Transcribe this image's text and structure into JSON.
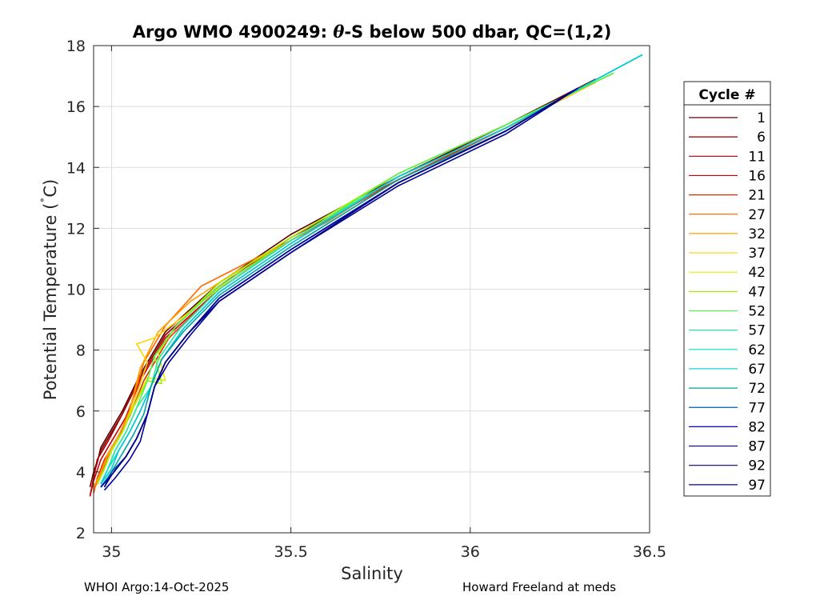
{
  "chart_data": {
    "type": "line",
    "title_parts": [
      "Argo WMO 4900249: ",
      "θ",
      "-S below 500 dbar,  QC=(1,2)"
    ],
    "xlabel": "Salinity",
    "ylabel_parts": [
      "Potential Temperature (",
      "˚",
      "C)"
    ],
    "xlim": [
      34.95,
      36.5
    ],
    "ylim": [
      2,
      18
    ],
    "xticks": [
      35,
      35.5,
      36,
      36.5
    ],
    "xtick_labels": [
      "35",
      "35.5",
      "36",
      "36.5"
    ],
    "yticks": [
      2,
      4,
      6,
      8,
      10,
      12,
      14,
      16,
      18
    ],
    "ytick_labels": [
      "2",
      "4",
      "6",
      "8",
      "10",
      "12",
      "14",
      "16",
      "18"
    ],
    "grid": true,
    "legend_placement": "outside-right",
    "legend_title": "Cycle #",
    "series": [
      {
        "name": "1",
        "color": "#5a0000",
        "x": [
          34.95,
          34.96,
          34.97,
          34.99,
          35.03,
          35.08,
          35.15,
          35.3,
          35.5,
          35.8,
          36.1,
          36.35
        ],
        "y": [
          3.9,
          4.3,
          4.8,
          5.2,
          6.0,
          7.2,
          8.6,
          10.2,
          11.8,
          13.7,
          15.4,
          16.9
        ]
      },
      {
        "name": "6",
        "color": "#7a0000",
        "x": [
          34.94,
          34.95,
          34.97,
          34.99,
          35.03,
          35.08,
          35.15,
          35.3,
          35.5,
          35.8,
          36.1,
          36.35
        ],
        "y": [
          3.5,
          4.0,
          4.7,
          5.1,
          5.9,
          7.1,
          8.5,
          10.1,
          11.7,
          13.6,
          15.3,
          16.8
        ]
      },
      {
        "name": "11",
        "color": "#a60000",
        "x": [
          34.94,
          34.95,
          34.96,
          34.99,
          35.03,
          35.08,
          35.15,
          35.3,
          35.5,
          35.8,
          36.1,
          36.35
        ],
        "y": [
          3.2,
          3.8,
          4.4,
          5.0,
          5.9,
          7.1,
          8.5,
          10.1,
          11.7,
          13.6,
          15.3,
          16.8
        ]
      },
      {
        "name": "16",
        "color": "#cc0000",
        "x": [
          34.94,
          34.95,
          34.97,
          35.0,
          35.04,
          35.08,
          35.15,
          35.3,
          35.5,
          35.8,
          36.1,
          36.35
        ],
        "y": [
          3.2,
          3.7,
          4.4,
          5.0,
          5.8,
          7.0,
          8.4,
          10.0,
          11.6,
          13.6,
          15.3,
          16.8
        ]
      },
      {
        "name": "21",
        "color": "#e62a00",
        "x": [
          34.95,
          34.96,
          34.98,
          35.01,
          35.05,
          35.09,
          35.16,
          35.3,
          35.5,
          35.8,
          36.1,
          36.35
        ],
        "y": [
          3.3,
          3.8,
          4.4,
          5.0,
          5.8,
          7.0,
          8.4,
          10.0,
          11.6,
          13.6,
          15.3,
          16.8
        ]
      },
      {
        "name": "27",
        "color": "#ff6a00",
        "x": [
          34.95,
          34.97,
          34.99,
          35.02,
          35.05,
          35.09,
          35.15,
          35.25,
          35.4,
          35.6,
          35.8,
          36.1,
          36.35
        ],
        "y": [
          3.4,
          3.9,
          4.5,
          5.1,
          6.0,
          7.6,
          8.8,
          10.1,
          11.0,
          12.2,
          13.7,
          15.3,
          16.8
        ]
      },
      {
        "name": "32",
        "color": "#ff9f00",
        "x": [
          34.95,
          34.97,
          34.99,
          35.02,
          35.05,
          35.08,
          35.13,
          35.22,
          35.35,
          35.5,
          35.8,
          36.1,
          36.35
        ],
        "y": [
          3.5,
          4.0,
          4.6,
          5.2,
          6.0,
          7.4,
          8.6,
          9.6,
          10.6,
          11.6,
          13.7,
          15.3,
          16.8
        ]
      },
      {
        "name": "37",
        "color": "#ffd400",
        "x": [
          34.96,
          34.98,
          35.0,
          35.03,
          35.06,
          35.1,
          35.07,
          35.12,
          35.2,
          35.35,
          35.5,
          35.8,
          36.1,
          36.35
        ],
        "y": [
          3.6,
          4.1,
          4.7,
          5.3,
          6.2,
          7.6,
          8.2,
          8.4,
          9.1,
          10.5,
          11.6,
          13.7,
          15.3,
          16.8
        ]
      },
      {
        "name": "42",
        "color": "#e0f000",
        "x": [
          34.96,
          34.98,
          35.0,
          35.03,
          35.06,
          35.1,
          35.15,
          35.13,
          35.18,
          35.3,
          35.5,
          35.8,
          36.1,
          36.4
        ],
        "y": [
          3.6,
          4.1,
          4.7,
          5.3,
          6.1,
          7.1,
          7.0,
          7.9,
          8.8,
          10.2,
          11.7,
          13.8,
          15.4,
          17.1
        ]
      },
      {
        "name": "47",
        "color": "#a2f000",
        "x": [
          34.96,
          34.98,
          35.0,
          35.03,
          35.06,
          35.1,
          35.14,
          35.12,
          35.18,
          35.3,
          35.5,
          35.8,
          36.1,
          36.4
        ],
        "y": [
          3.6,
          4.1,
          4.7,
          5.3,
          6.1,
          7.0,
          6.9,
          7.8,
          8.8,
          10.2,
          11.7,
          13.8,
          15.4,
          17.1
        ]
      },
      {
        "name": "52",
        "color": "#55f055",
        "x": [
          34.97,
          34.99,
          35.01,
          35.04,
          35.07,
          35.1,
          35.12,
          35.18,
          35.3,
          35.5,
          35.8,
          36.1,
          36.4
        ],
        "y": [
          3.6,
          4.1,
          4.7,
          5.3,
          6.1,
          7.0,
          7.8,
          8.8,
          10.1,
          11.6,
          13.8,
          15.4,
          17.1
        ]
      },
      {
        "name": "57",
        "color": "#2ae6a0",
        "x": [
          34.97,
          34.99,
          35.01,
          35.04,
          35.07,
          35.11,
          35.13,
          35.19,
          35.3,
          35.5,
          35.8,
          36.1,
          36.48
        ],
        "y": [
          3.6,
          4.1,
          4.7,
          5.3,
          6.1,
          6.8,
          7.7,
          8.7,
          10.0,
          11.6,
          13.7,
          15.3,
          17.7
        ]
      },
      {
        "name": "62",
        "color": "#00e0c8",
        "x": [
          34.97,
          34.99,
          35.02,
          35.05,
          35.08,
          35.11,
          35.14,
          35.2,
          35.3,
          35.5,
          35.8,
          36.1,
          36.48
        ],
        "y": [
          3.6,
          4.1,
          4.7,
          5.3,
          6.0,
          6.8,
          7.7,
          8.7,
          9.9,
          11.5,
          13.7,
          15.3,
          17.7
        ]
      },
      {
        "name": "67",
        "color": "#00c8d8",
        "x": [
          34.97,
          35.0,
          35.02,
          35.05,
          35.08,
          35.11,
          35.14,
          35.2,
          35.3,
          35.5,
          35.8,
          36.1,
          36.48
        ],
        "y": [
          3.6,
          4.1,
          4.7,
          5.3,
          6.0,
          6.8,
          7.7,
          8.7,
          9.9,
          11.5,
          13.7,
          15.3,
          17.7
        ]
      },
      {
        "name": "72",
        "color": "#00a0a0",
        "x": [
          34.97,
          35.0,
          35.03,
          35.06,
          35.09,
          35.11,
          35.14,
          35.2,
          35.3,
          35.5,
          35.8,
          36.1,
          36.3
        ],
        "y": [
          3.5,
          4.0,
          4.6,
          5.2,
          5.9,
          6.8,
          7.7,
          8.6,
          9.8,
          11.4,
          13.6,
          15.2,
          16.6
        ]
      },
      {
        "name": "77",
        "color": "#005ab4",
        "x": [
          34.98,
          35.0,
          35.04,
          35.07,
          35.1,
          35.12,
          35.15,
          35.21,
          35.3,
          35.5,
          35.8,
          36.1,
          36.3
        ],
        "y": [
          3.5,
          4.0,
          4.5,
          5.1,
          5.9,
          6.8,
          7.6,
          8.5,
          9.7,
          11.3,
          13.5,
          15.2,
          16.6
        ]
      },
      {
        "name": "82",
        "color": "#0000c8",
        "x": [
          34.97,
          35.0,
          35.04,
          35.07,
          35.1,
          35.12,
          35.15,
          35.21,
          35.3,
          35.5,
          35.8,
          36.1,
          36.3
        ],
        "y": [
          3.5,
          3.9,
          4.5,
          5.1,
          5.9,
          6.8,
          7.6,
          8.5,
          9.7,
          11.3,
          13.5,
          15.2,
          16.6
        ]
      },
      {
        "name": "87",
        "color": "#0000a0",
        "x": [
          34.97,
          35.0,
          35.04,
          35.07,
          35.1,
          35.12,
          35.15,
          35.21,
          35.3,
          35.5,
          35.8,
          36.1,
          36.3
        ],
        "y": [
          3.5,
          3.9,
          4.5,
          5.1,
          5.9,
          6.8,
          7.6,
          8.5,
          9.7,
          11.3,
          13.5,
          15.2,
          16.6
        ]
      },
      {
        "name": "92",
        "color": "#000080",
        "x": [
          34.98,
          35.0,
          35.04,
          35.07,
          35.1,
          35.12,
          35.15,
          35.21,
          35.3,
          35.5,
          35.8,
          36.1,
          36.3
        ],
        "y": [
          3.5,
          3.9,
          4.5,
          5.1,
          5.9,
          6.8,
          7.6,
          8.5,
          9.6,
          11.2,
          13.5,
          15.2,
          16.6
        ]
      },
      {
        "name": "97",
        "color": "#00009a",
        "x": [
          34.98,
          35.01,
          35.05,
          35.08,
          35.1,
          35.12,
          35.16,
          35.22,
          35.3,
          35.5,
          35.8,
          36.1,
          36.3
        ],
        "y": [
          3.4,
          3.8,
          4.4,
          5.0,
          5.9,
          6.8,
          7.6,
          8.5,
          9.6,
          11.2,
          13.4,
          15.1,
          16.6
        ]
      }
    ]
  },
  "footer": {
    "left": "WHOI Argo:14-Oct-2025",
    "right": "Howard Freeland at meds"
  }
}
